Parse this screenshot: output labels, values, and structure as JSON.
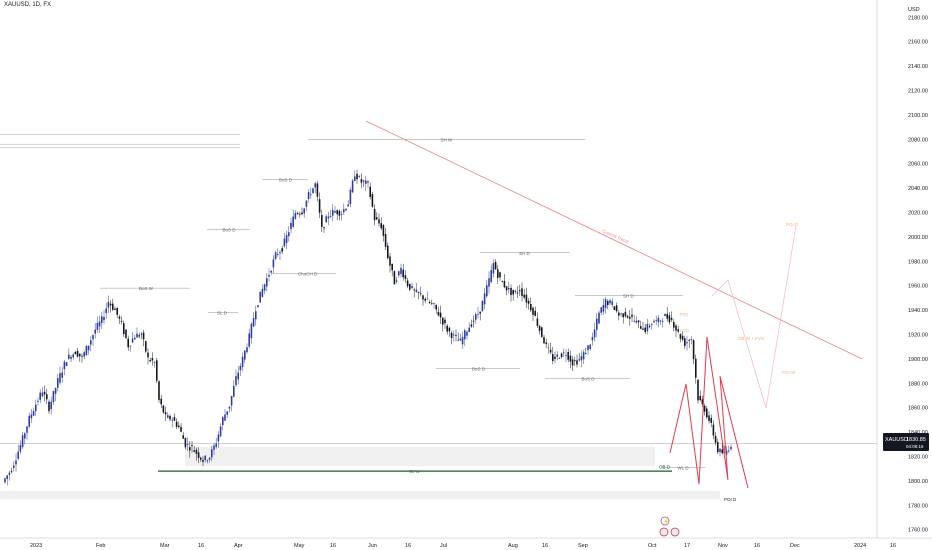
{
  "header": {
    "symbol": "XAUUSD, 1D, FX",
    "currency": "USD"
  },
  "price_tag": {
    "label": "XAUUSD",
    "price": "1830.85",
    "countdown": "04:08:16"
  },
  "chart_data": {
    "type": "candlestick",
    "title": "XAUUSD, 1D, FX",
    "ylabel": "USD",
    "ylim": [
      1745,
      2195
    ],
    "y_ticks": [
      1760,
      1780,
      1800,
      1820,
      1840,
      1860,
      1880,
      1900,
      1920,
      1940,
      1960,
      1980,
      2000,
      2020,
      2040,
      2060,
      2080,
      2100,
      2120,
      2140,
      2160,
      2180
    ],
    "x_tick_labels": [
      "2023",
      "Feb",
      "Mar",
      "16",
      "Apr",
      "May",
      "16",
      "Jun",
      "16",
      "Jul",
      "Aug",
      "16",
      "Sep",
      "Oct",
      "17",
      "Nov",
      "16",
      "Dec",
      "2024",
      "16"
    ],
    "last_price": 1830.85,
    "path": [
      [
        1,
        1799
      ],
      [
        5,
        1810
      ],
      [
        9,
        1829
      ],
      [
        13,
        1851
      ],
      [
        16,
        1863
      ],
      [
        19,
        1874
      ],
      [
        22,
        1860
      ],
      [
        26,
        1882
      ],
      [
        30,
        1900
      ],
      [
        34,
        1906
      ],
      [
        37,
        1901
      ],
      [
        40,
        1912
      ],
      [
        43,
        1924
      ],
      [
        46,
        1932
      ],
      [
        49,
        1947
      ],
      [
        52,
        1940
      ],
      [
        55,
        1928
      ],
      [
        58,
        1911
      ],
      [
        61,
        1919
      ],
      [
        64,
        1920
      ],
      [
        67,
        1900
      ],
      [
        70,
        1897
      ],
      [
        72,
        1866
      ],
      [
        75,
        1852
      ],
      [
        78,
        1851
      ],
      [
        81,
        1844
      ],
      [
        84,
        1830
      ],
      [
        87,
        1827
      ],
      [
        90,
        1821
      ],
      [
        92,
        1817
      ],
      [
        95,
        1820
      ],
      [
        98,
        1832
      ],
      [
        101,
        1851
      ],
      [
        104,
        1862
      ],
      [
        107,
        1884
      ],
      [
        110,
        1900
      ],
      [
        113,
        1918
      ],
      [
        116,
        1942
      ],
      [
        119,
        1957
      ],
      [
        122,
        1970
      ],
      [
        125,
        1985
      ],
      [
        128,
        1991
      ],
      [
        131,
        2005
      ],
      [
        134,
        2020
      ],
      [
        137,
        2021
      ],
      [
        140,
        2034
      ],
      [
        143,
        2043
      ],
      [
        146,
        2006
      ],
      [
        149,
        2018
      ],
      [
        152,
        2021
      ],
      [
        155,
        2020
      ],
      [
        158,
        2028
      ],
      [
        161,
        2052
      ],
      [
        164,
        2045
      ],
      [
        167,
        2043
      ],
      [
        170,
        2015
      ],
      [
        173,
        2009
      ],
      [
        176,
        1984
      ],
      [
        179,
        1963
      ],
      [
        182,
        1974
      ],
      [
        185,
        1961
      ],
      [
        188,
        1955
      ],
      [
        191,
        1952
      ],
      [
        194,
        1947
      ],
      [
        197,
        1943
      ],
      [
        200,
        1934
      ],
      [
        203,
        1924
      ],
      [
        206,
        1918
      ],
      [
        209,
        1914
      ],
      [
        212,
        1924
      ],
      [
        215,
        1932
      ],
      [
        218,
        1940
      ],
      [
        221,
        1958
      ],
      [
        224,
        1978
      ],
      [
        227,
        1965
      ],
      [
        230,
        1958
      ],
      [
        233,
        1953
      ],
      [
        236,
        1957
      ],
      [
        239,
        1948
      ],
      [
        242,
        1939
      ],
      [
        245,
        1924
      ],
      [
        248,
        1910
      ],
      [
        251,
        1900
      ],
      [
        254,
        1903
      ],
      [
        257,
        1905
      ],
      [
        260,
        1897
      ],
      [
        263,
        1899
      ],
      [
        266,
        1906
      ],
      [
        269,
        1917
      ],
      [
        272,
        1937
      ],
      [
        275,
        1947
      ],
      [
        278,
        1945
      ],
      [
        281,
        1936
      ],
      [
        284,
        1937
      ],
      [
        287,
        1933
      ],
      [
        290,
        1928
      ],
      [
        293,
        1924
      ],
      [
        296,
        1930
      ],
      [
        299,
        1931
      ],
      [
        302,
        1935
      ],
      [
        305,
        1932
      ],
      [
        308,
        1921
      ],
      [
        311,
        1913
      ],
      [
        314,
        1917
      ],
      [
        317,
        1868
      ],
      [
        320,
        1859
      ],
      [
        323,
        1845
      ],
      [
        326,
        1825
      ],
      [
        329,
        1822
      ],
      [
        332,
        1830
      ]
    ],
    "projection": [
      [
        329,
        1814
      ],
      [
        343,
        1860
      ],
      [
        346,
        1815
      ],
      [
        350,
        1795
      ],
      [
        356,
        1880
      ],
      [
        361,
        1792
      ],
      [
        370,
        1787
      ]
    ],
    "levels": [
      {
        "label": "SH W",
        "price": 2080
      },
      {
        "label": "BoS W",
        "price": 1958
      },
      {
        "label": "BoS D",
        "price": 2047
      },
      {
        "label": "BoS D",
        "price": 2006
      },
      {
        "label": "SL D",
        "price": 1938
      },
      {
        "label": "ChoCH D",
        "price": 1970
      },
      {
        "label": "SH D",
        "price": 1987
      },
      {
        "label": "SH D",
        "price": 1952
      },
      {
        "label": "BoS D",
        "price": 1892
      },
      {
        "label": "BoS D",
        "price": 1884
      },
      {
        "label": "WL D",
        "price": 1811
      },
      {
        "label": "SL W",
        "price": 1808
      }
    ],
    "zones": [
      {
        "label": "OB D",
        "price_from": 1812,
        "price_to": 1828
      },
      {
        "label": "POI D",
        "price_from": 1785,
        "price_to": 1792
      }
    ],
    "trendline": {
      "label": "Current Trend",
      "from": [
        185,
        2095
      ],
      "to": [
        430,
        1900
      ]
    },
    "faint_labels": [
      "FVG",
      "POI",
      "OB W + FVG",
      "POI W",
      "POI D"
    ]
  }
}
